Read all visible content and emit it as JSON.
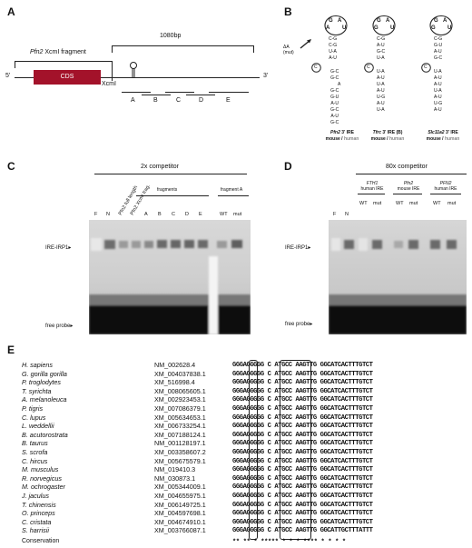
{
  "panels": {
    "a": "A",
    "b": "B",
    "c": "C",
    "d": "D",
    "e": "E"
  },
  "panel_a": {
    "fragment_title": "Pfn2 XcmI fragment",
    "fragment_gene": "Pfn2",
    "fragment_rest": " XcmI fragment",
    "length": "1080bp",
    "five_prime": "5'",
    "three_prime": "3'",
    "cds": "CDS",
    "site": "XcmI",
    "fragments": [
      "A",
      "B",
      "C",
      "D",
      "E"
    ]
  },
  "panel_b": {
    "mutation_label": "ΔA",
    "mutation_sub": "(mut)",
    "structures": [
      {
        "gene": "Pfn2",
        "caption": " 3' IRE",
        "species_a": "mouse",
        "species_b": "human",
        "loop": [
          "G",
          "A",
          "U",
          "A"
        ],
        "stem_top": [
          "C-G",
          "C-G",
          "U-A",
          "A-U"
        ],
        "bulge": "C",
        "stem_bottom": [
          "G-C",
          "G-C",
          "A",
          "G-C",
          "G-U",
          "A-U",
          "G-C",
          "A-U",
          "G-C"
        ]
      },
      {
        "gene": "Tfrc",
        "caption": " 3' IRE (B)",
        "species_a": "mouse",
        "species_b": "human",
        "loop": [
          "G",
          "A",
          "U",
          "G"
        ],
        "stem_top": [
          "C-G",
          "A-U",
          "G-C",
          "U-A"
        ],
        "bulge": "C",
        "stem_bottom": [
          "U-A",
          "A-U",
          "U-A",
          "A-U",
          "U-G",
          "A-U",
          "U-A"
        ]
      },
      {
        "gene": "Slc11a2",
        "caption": " 3' IRE",
        "species_a": "mouse",
        "species_b": "human",
        "loop": [
          "G",
          "A",
          "U",
          "G"
        ],
        "stem_top": [
          "C-G",
          "G-U",
          "A-U",
          "G-C"
        ],
        "bulge": "C",
        "stem_bottom": [
          "U-A",
          "A-U",
          "A-U",
          "U-A",
          "A-U",
          "U-G",
          "A-U"
        ]
      }
    ]
  },
  "panel_c": {
    "header": "2x competitor",
    "lane_f": "F",
    "lane_n": "N",
    "lane_full": "Pfn2 full length",
    "lane_xcmi": "Pfn2 XcmI frag.",
    "fragments_label": "fragments",
    "fragments": [
      "A",
      "B",
      "C",
      "D",
      "E"
    ],
    "fragment_a_label": "fragment A",
    "wt": "WT",
    "mut": "mut",
    "band_label": "IRE-IRP1",
    "free_label": "free probe"
  },
  "panel_d": {
    "header": "80x competitor",
    "lane_f": "F",
    "lane_n": "N",
    "groups": [
      {
        "gene": "FTH1",
        "sub": "human IRE"
      },
      {
        "gene": "Pfn2",
        "sub": "mouse IRE"
      },
      {
        "gene": "PFN2",
        "sub": "human IRE"
      }
    ],
    "wt": "WT",
    "mut": "mut",
    "band_label": "IRE-IRP1",
    "free_label": "free probe"
  },
  "panel_e": {
    "rows": [
      {
        "species": "H. sapiens",
        "acc": "NM_002628.4",
        "seq": "GGGAGGGGG C ATGCC AAGTTG GGCATCACTTTGTCT"
      },
      {
        "species": "G. gorilla gorilla",
        "acc": "XM_004037838.1",
        "seq": "GGGAGGGGG C ATGCC AAGTTG GGCATCACTTTGTCT"
      },
      {
        "species": "P. troglodytes",
        "acc": "XM_516998.4",
        "seq": "GGGAGGGGG C ATGCC AAGTTG GGCATCACTTTGTCT"
      },
      {
        "species": "T. syrichta",
        "acc": "XM_008065605.1",
        "seq": "GGGAGGGGG C ATGCC AAGTTG GGCATCACTTTGTCT"
      },
      {
        "species": "A. melanoleuca",
        "acc": "XM_002923453.1",
        "seq": "GGGAGGGGG C ATGCC AAGTTG GGCATCACTTTGTCT"
      },
      {
        "species": "P. tigris",
        "acc": "XM_007086379.1",
        "seq": "GGGAGGGGG C ATGCC AAGTTG GGCATCACTTTGTCT"
      },
      {
        "species": "C. lupus",
        "acc": "XM_005634653.1",
        "seq": "GGGAGGGGG C ATGCC AAGTTG GGCATCACTTTGTCT"
      },
      {
        "species": "L. weddellii",
        "acc": "XM_006733254.1",
        "seq": "GGGAGGGGG C ATGCC AAGTTG GGCATCACTTTGTCT"
      },
      {
        "species": "B. acutorostrata",
        "acc": "XM_007188124.1",
        "seq": "GGGAGGGGG C ATGCC AAGTTG GGCATCACTTTGTCT"
      },
      {
        "species": "B. taurus",
        "acc": "NM_001128197.1",
        "seq": "GGGAGGGGG C ATGCC AAGTTG GGCATCACTTTGTCT"
      },
      {
        "species": "S. scrofa",
        "acc": "XM_003358607.2",
        "seq": "GGGAGGGGG C ATGCC AAGTTG GGCATCACTTTGTCT"
      },
      {
        "species": "C. hircus",
        "acc": "XM_005675579.1",
        "seq": "GGGAGGGGG C ATGCC AAGTTG GGCATCACTTTGTCT"
      },
      {
        "species": "M. musculus",
        "acc": "NM_019410.3",
        "seq": "GGGAGGGGG C ATGCC AAGTTG GGCATCACTTTGTCT"
      },
      {
        "species": "R. norvegicus",
        "acc": "NM_030873.1",
        "seq": "GGGAGGGGG C ATGCC AAGTTG GGCATCACTTTGTCT"
      },
      {
        "species": "M. ochrogaster",
        "acc": "XM_005344009.1",
        "seq": "GGGAGGGGG C ATGCC AAGTTG GGCATCACTTTGTCT"
      },
      {
        "species": "J. jaculus",
        "acc": "XM_004655975.1",
        "seq": "GGGAGGGGG C ATGCC AAGTTG GGCATCACTTTGTCT"
      },
      {
        "species": "T. chinensis",
        "acc": "XM_006149725.1",
        "seq": "GGGAGGGGG C ATGCC AAGTTG GGCATCACTTTGTCT"
      },
      {
        "species": "O. princeps",
        "acc": "XM_004597698.1",
        "seq": "GGGAGGGGG C ATGCC AAGTTG GGCATCACTTTGTCT"
      },
      {
        "species": "C. cristata",
        "acc": "XM_004674910.1",
        "seq": "GGGAGGGGG C ATGCC AAGTTG GGCATCACTTTGTCT"
      },
      {
        "species": "S. harrisii",
        "acc": "XM_003766087.1",
        "seq": "GGGAGGGGG C ATGCC AAGTTG GGCATTGCTTTATTT"
      }
    ],
    "conservation_label": "Conservation",
    "conservation_marks": "** ** * ***** * * * **** * * * *"
  }
}
